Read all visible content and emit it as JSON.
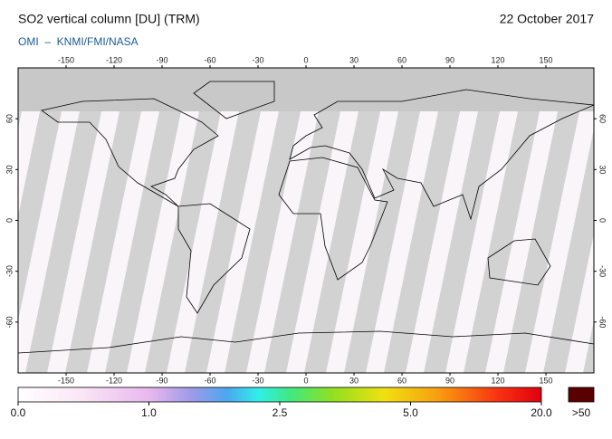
{
  "header": {
    "title": "SO2 vertical column [DU] (TRM)",
    "date": "22 October 2017",
    "source": "OMI  –  KNMI/FMI/NASA"
  },
  "map": {
    "lon_ticks": [
      -150,
      -120,
      -90,
      -60,
      -30,
      0,
      30,
      60,
      90,
      120,
      150
    ],
    "lat_ticks": [
      60,
      30,
      0,
      -30,
      -60
    ]
  },
  "colorbar": {
    "ticks": [
      {
        "value": 0,
        "label": "0.0"
      },
      {
        "value": 1,
        "label": "1.0"
      },
      {
        "value": 2.5,
        "label": "2.5"
      },
      {
        "value": 5,
        "label": "5.0"
      },
      {
        "value": 20,
        "label": "20.0"
      }
    ],
    "over_label": ">50"
  }
}
